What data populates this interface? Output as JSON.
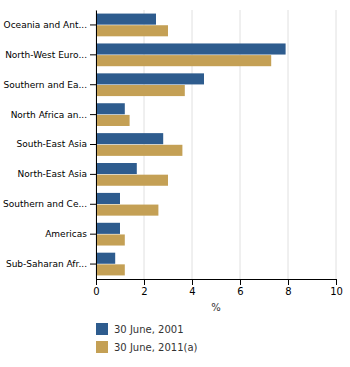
{
  "chart_data": {
    "type": "bar",
    "orientation": "horizontal",
    "categories": [
      "Oceania and Ant...",
      "North-West Euro...",
      "Southern and Ea...",
      "North Africa an...",
      "South-East Asia",
      "North-East Asia",
      "Southern and Ce...",
      "Americas",
      "Sub-Saharan Afr..."
    ],
    "series": [
      {
        "name": "30 June, 2001",
        "color": "#2E5C8E",
        "values": [
          2.5,
          7.9,
          4.5,
          1.2,
          2.8,
          1.7,
          1.0,
          1.0,
          0.8
        ]
      },
      {
        "name": "30 June, 2011(a)",
        "color": "#C4A055",
        "values": [
          3.0,
          7.3,
          3.7,
          1.4,
          3.6,
          3.0,
          2.6,
          1.2,
          1.2
        ]
      }
    ],
    "xlabel": "%",
    "xlim": [
      0,
      10
    ],
    "xticks": [
      0,
      2,
      4,
      6,
      8,
      10
    ],
    "grid": true,
    "legend": "lower left"
  }
}
